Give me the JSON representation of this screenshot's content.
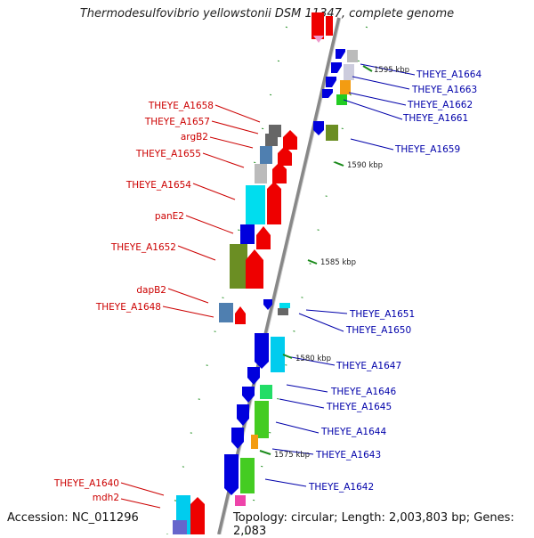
{
  "title": "Thermodesulfovibrio yellowstonii DSM 11347, complete genome",
  "accession": "Accession: NC_011296",
  "topology": "Topology: circular; Length: 2,003,803 bp; Genes: 2,083",
  "colors": {
    "left_label": "#cc0000",
    "right_label": "#0000aa",
    "backbone": "#808080"
  },
  "ticks": [
    {
      "label": "1595 kbp"
    },
    {
      "label": "1590 kbp"
    },
    {
      "label": "1585 kbp"
    },
    {
      "label": "1580 kbp"
    },
    {
      "label": "1575 kbp"
    }
  ],
  "left_genes": [
    {
      "label": "THEYE_A1658"
    },
    {
      "label": "THEYE_A1657"
    },
    {
      "label": "argB2"
    },
    {
      "label": "THEYE_A1655"
    },
    {
      "label": "THEYE_A1654"
    },
    {
      "label": "panE2"
    },
    {
      "label": "THEYE_A1652"
    },
    {
      "label": "dapB2"
    },
    {
      "label": "THEYE_A1648"
    },
    {
      "label": "THEYE_A1640"
    },
    {
      "label": "mdh2"
    }
  ],
  "right_genes": [
    {
      "label": "THEYE_A1664"
    },
    {
      "label": "THEYE_A1663"
    },
    {
      "label": "THEYE_A1662"
    },
    {
      "label": "THEYE_A1661"
    },
    {
      "label": "THEYE_A1659"
    },
    {
      "label": "THEYE_A1651"
    },
    {
      "label": "THEYE_A1650"
    },
    {
      "label": "THEYE_A1647"
    },
    {
      "label": "THEYE_A1646"
    },
    {
      "label": "THEYE_A1645"
    },
    {
      "label": "THEYE_A1644"
    },
    {
      "label": "THEYE_A1643"
    },
    {
      "label": "THEYE_A1642"
    }
  ]
}
